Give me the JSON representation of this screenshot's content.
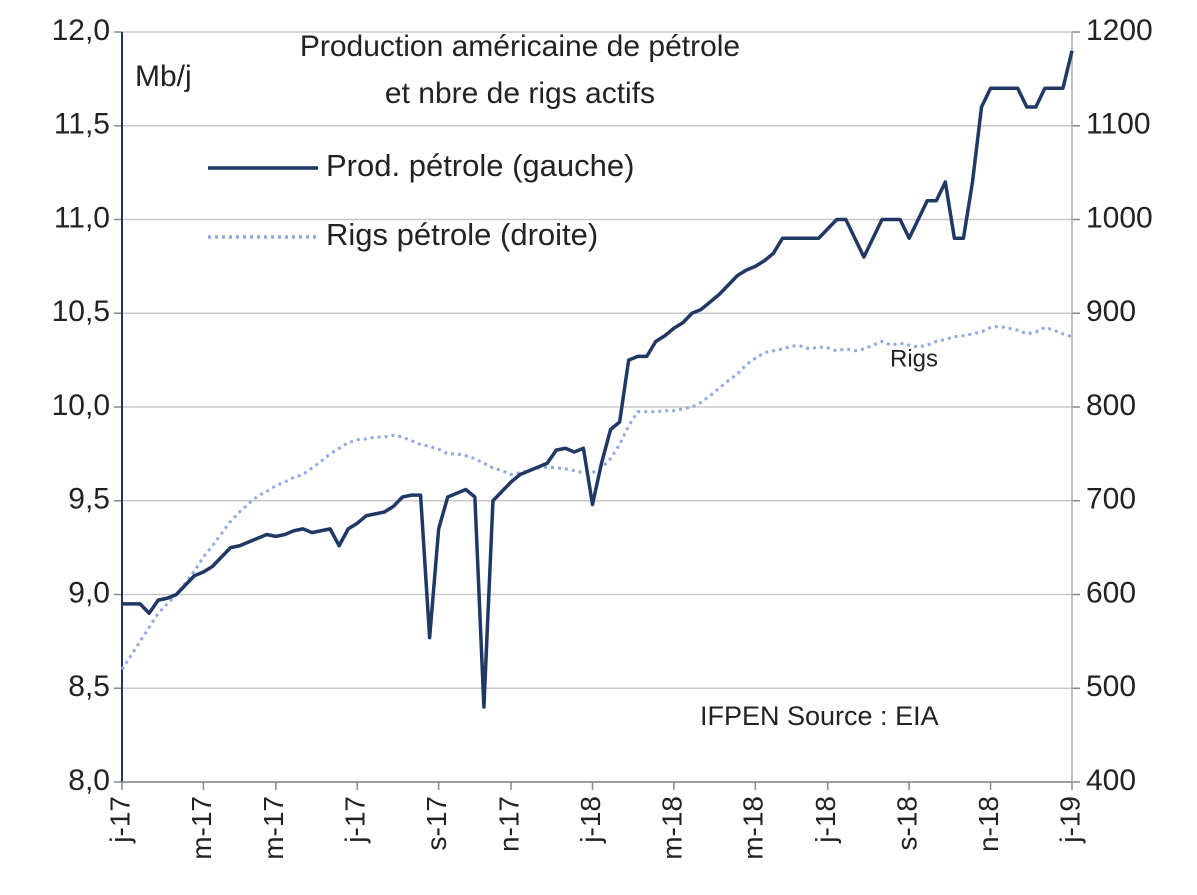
{
  "chart_data": {
    "type": "line",
    "title": [
      "Production américaine de pétrole",
      "et nbre de rigs actifs"
    ],
    "annotations": [
      "Mb/j",
      "Rigs",
      "IFPEN Source : EIA"
    ],
    "categories": [
      "j-17",
      null,
      null,
      null,
      null,
      null,
      null,
      null,
      null,
      "m-17",
      null,
      null,
      null,
      null,
      null,
      null,
      null,
      "m-17",
      null,
      null,
      null,
      null,
      null,
      null,
      null,
      null,
      "j-17",
      null,
      null,
      null,
      null,
      null,
      null,
      null,
      null,
      "s-17",
      null,
      null,
      null,
      null,
      null,
      null,
      null,
      "n-17",
      null,
      null,
      null,
      null,
      null,
      null,
      null,
      null,
      "j-18",
      null,
      null,
      null,
      null,
      null,
      null,
      null,
      null,
      "m-18",
      null,
      null,
      null,
      null,
      null,
      null,
      null,
      null,
      "m-18",
      null,
      null,
      null,
      null,
      null,
      null,
      null,
      "j-18",
      null,
      null,
      null,
      null,
      null,
      null,
      null,
      null,
      "s-18",
      null,
      null,
      null,
      null,
      null,
      null,
      null,
      null,
      "n-18",
      null,
      null,
      null,
      null,
      null,
      null,
      null,
      null,
      "j-19"
    ],
    "series": [
      {
        "name": "Prod. pétrole (gauche)",
        "color": "#1f3864",
        "style": "solid",
        "values": [
          8.95,
          8.95,
          8.95,
          8.9,
          8.97,
          8.98,
          9.0,
          9.05,
          9.1,
          9.12,
          9.15,
          9.2,
          9.25,
          9.26,
          9.28,
          9.3,
          9.32,
          9.31,
          9.32,
          9.34,
          9.35,
          9.33,
          9.34,
          9.35,
          9.26,
          9.35,
          9.38,
          9.42,
          9.43,
          9.44,
          9.47,
          9.52,
          9.53,
          9.53,
          8.77,
          9.35,
          9.52,
          9.54,
          9.56,
          9.52,
          8.4,
          9.5,
          9.55,
          9.6,
          9.64,
          9.66,
          9.68,
          9.7,
          9.77,
          9.78,
          9.76,
          9.78,
          9.48,
          9.7,
          9.88,
          9.92,
          10.25,
          10.27,
          10.27,
          10.35,
          10.38,
          10.42,
          10.45,
          10.5,
          10.52,
          10.56,
          10.6,
          10.65,
          10.7,
          10.73,
          10.75,
          10.78,
          10.82,
          10.9,
          10.9,
          10.9,
          10.9,
          10.9,
          10.95,
          11.0,
          11.0,
          10.9,
          10.8,
          10.9,
          11.0,
          11.0,
          11.0,
          10.9,
          11.0,
          11.1,
          11.1,
          11.2,
          10.9,
          10.9,
          11.2,
          11.6,
          11.7,
          11.7,
          11.7,
          11.7,
          11.6,
          11.6,
          11.7,
          11.7,
          11.7,
          11.9
        ]
      },
      {
        "name": "Rigs pétrole (droite)",
        "color": "#8faadc",
        "style": "dotted",
        "axis": "y2",
        "values": [
          520,
          535,
          550,
          565,
          580,
          590,
          600,
          612,
          625,
          640,
          652,
          665,
          678,
          688,
          697,
          705,
          710,
          716,
          720,
          725,
          728,
          735,
          742,
          750,
          756,
          762,
          765,
          766,
          768,
          768,
          770,
          768,
          764,
          760,
          758,
          755,
          750,
          750,
          748,
          745,
          740,
          735,
          732,
          728,
          730,
          732,
          735,
          736,
          735,
          734,
          732,
          730,
          730,
          735,
          745,
          760,
          780,
          795,
          795,
          795,
          796,
          796,
          798,
          800,
          805,
          812,
          820,
          828,
          835,
          845,
          852,
          858,
          860,
          862,
          865,
          865,
          862,
          864,
          863,
          860,
          862,
          860,
          862,
          866,
          870,
          866,
          868,
          866,
          864,
          866,
          870,
          872,
          875,
          876,
          878,
          880,
          885,
          886,
          884,
          882,
          878,
          880,
          885,
          882,
          878,
          875
        ]
      }
    ],
    "ylim": [
      8.0,
      12.0
    ],
    "yticks": [
      {
        "value": 8.0,
        "label": "8,0"
      },
      {
        "value": 8.5,
        "label": "8,5"
      },
      {
        "value": 9.0,
        "label": "9,0"
      },
      {
        "value": 9.5,
        "label": "9,5"
      },
      {
        "value": 10.0,
        "label": "10,0"
      },
      {
        "value": 10.5,
        "label": "10,5"
      },
      {
        "value": 11.0,
        "label": "11,0"
      },
      {
        "value": 11.5,
        "label": "11,5"
      },
      {
        "value": 12.0,
        "label": "12,0"
      }
    ],
    "y2lim": [
      400,
      1200
    ],
    "y2ticks": [
      400,
      500,
      600,
      700,
      800,
      900,
      1000,
      1100,
      1200
    ],
    "grid": true,
    "legend": "top-left"
  }
}
